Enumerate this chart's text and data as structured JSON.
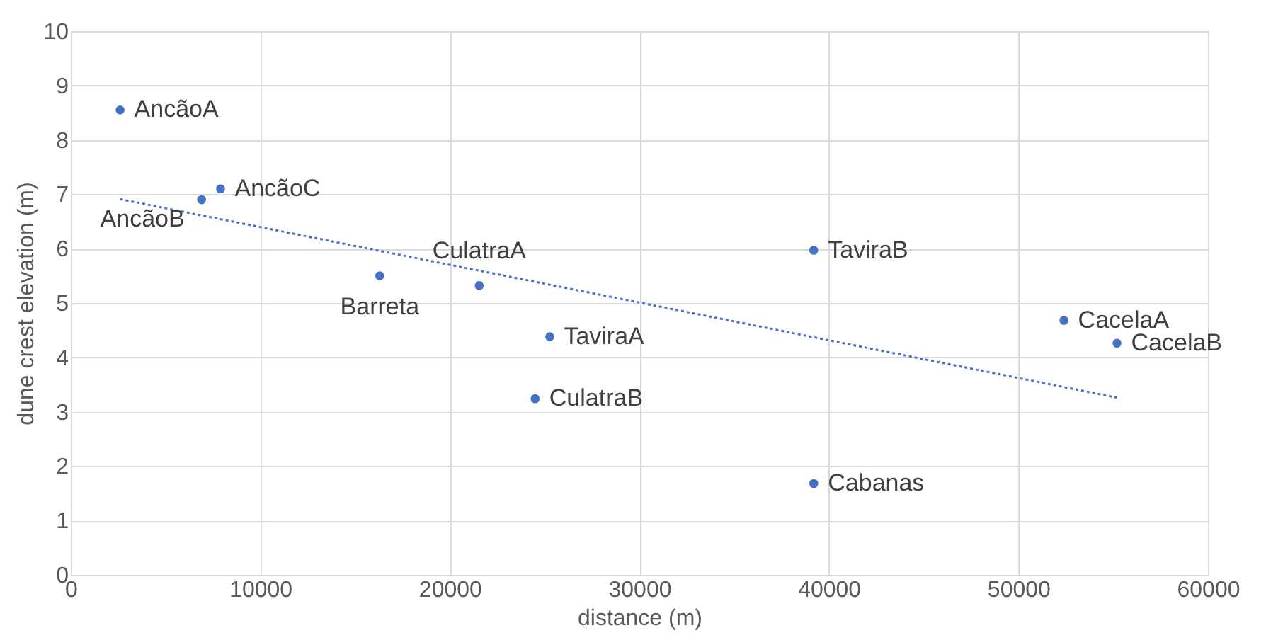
{
  "chart_data": {
    "type": "scatter",
    "xlabel": "distance (m)",
    "ylabel": "dune crest elevation (m)",
    "xlim": [
      0,
      60000
    ],
    "xticks": [
      0,
      10000,
      20000,
      30000,
      40000,
      50000,
      60000
    ],
    "ylim": [
      0,
      10
    ],
    "yticks": [
      0,
      1,
      2,
      3,
      4,
      5,
      6,
      7,
      8,
      9,
      10
    ],
    "grid": true,
    "legend": false,
    "marker": "circle",
    "series": [
      {
        "color": "#4472c4",
        "x": [
          2600,
          7900,
          6900,
          16300,
          21550,
          25270,
          24500,
          39200,
          39200,
          52400,
          55200
        ],
        "values": [
          8.55,
          7.1,
          6.9,
          5.5,
          5.32,
          4.38,
          3.24,
          5.97,
          1.68,
          4.68,
          4.26
        ]
      },
      {
        "type": "line",
        "color": "#4472c4",
        "line_style": "dotted",
        "marker": "none",
        "x": [
          2600,
          55200
        ],
        "values": [
          6.91,
          3.26
        ]
      }
    ],
    "annotations": [
      {
        "text": "AncãoA",
        "x": 2600,
        "y": 8.55
      },
      {
        "text": "AncãoC",
        "x": 7900,
        "y": 7.1
      },
      {
        "text": "AncãoB",
        "x": 6900,
        "y": 6.9
      },
      {
        "text": "Barreta",
        "x": 16300,
        "y": 5.5
      },
      {
        "text": "CulatraA",
        "x": 21550,
        "y": 5.32
      },
      {
        "text": "TaviraA",
        "x": 25270,
        "y": 4.38
      },
      {
        "text": "CulatraB",
        "x": 24500,
        "y": 3.24
      },
      {
        "text": "TaviraB",
        "x": 39200,
        "y": 5.97
      },
      {
        "text": "Cabanas",
        "x": 39200,
        "y": 1.68
      },
      {
        "text": "CacelaA",
        "x": 52400,
        "y": 4.68
      },
      {
        "text": "CacelaB",
        "x": 55200,
        "y": 4.26
      }
    ]
  }
}
